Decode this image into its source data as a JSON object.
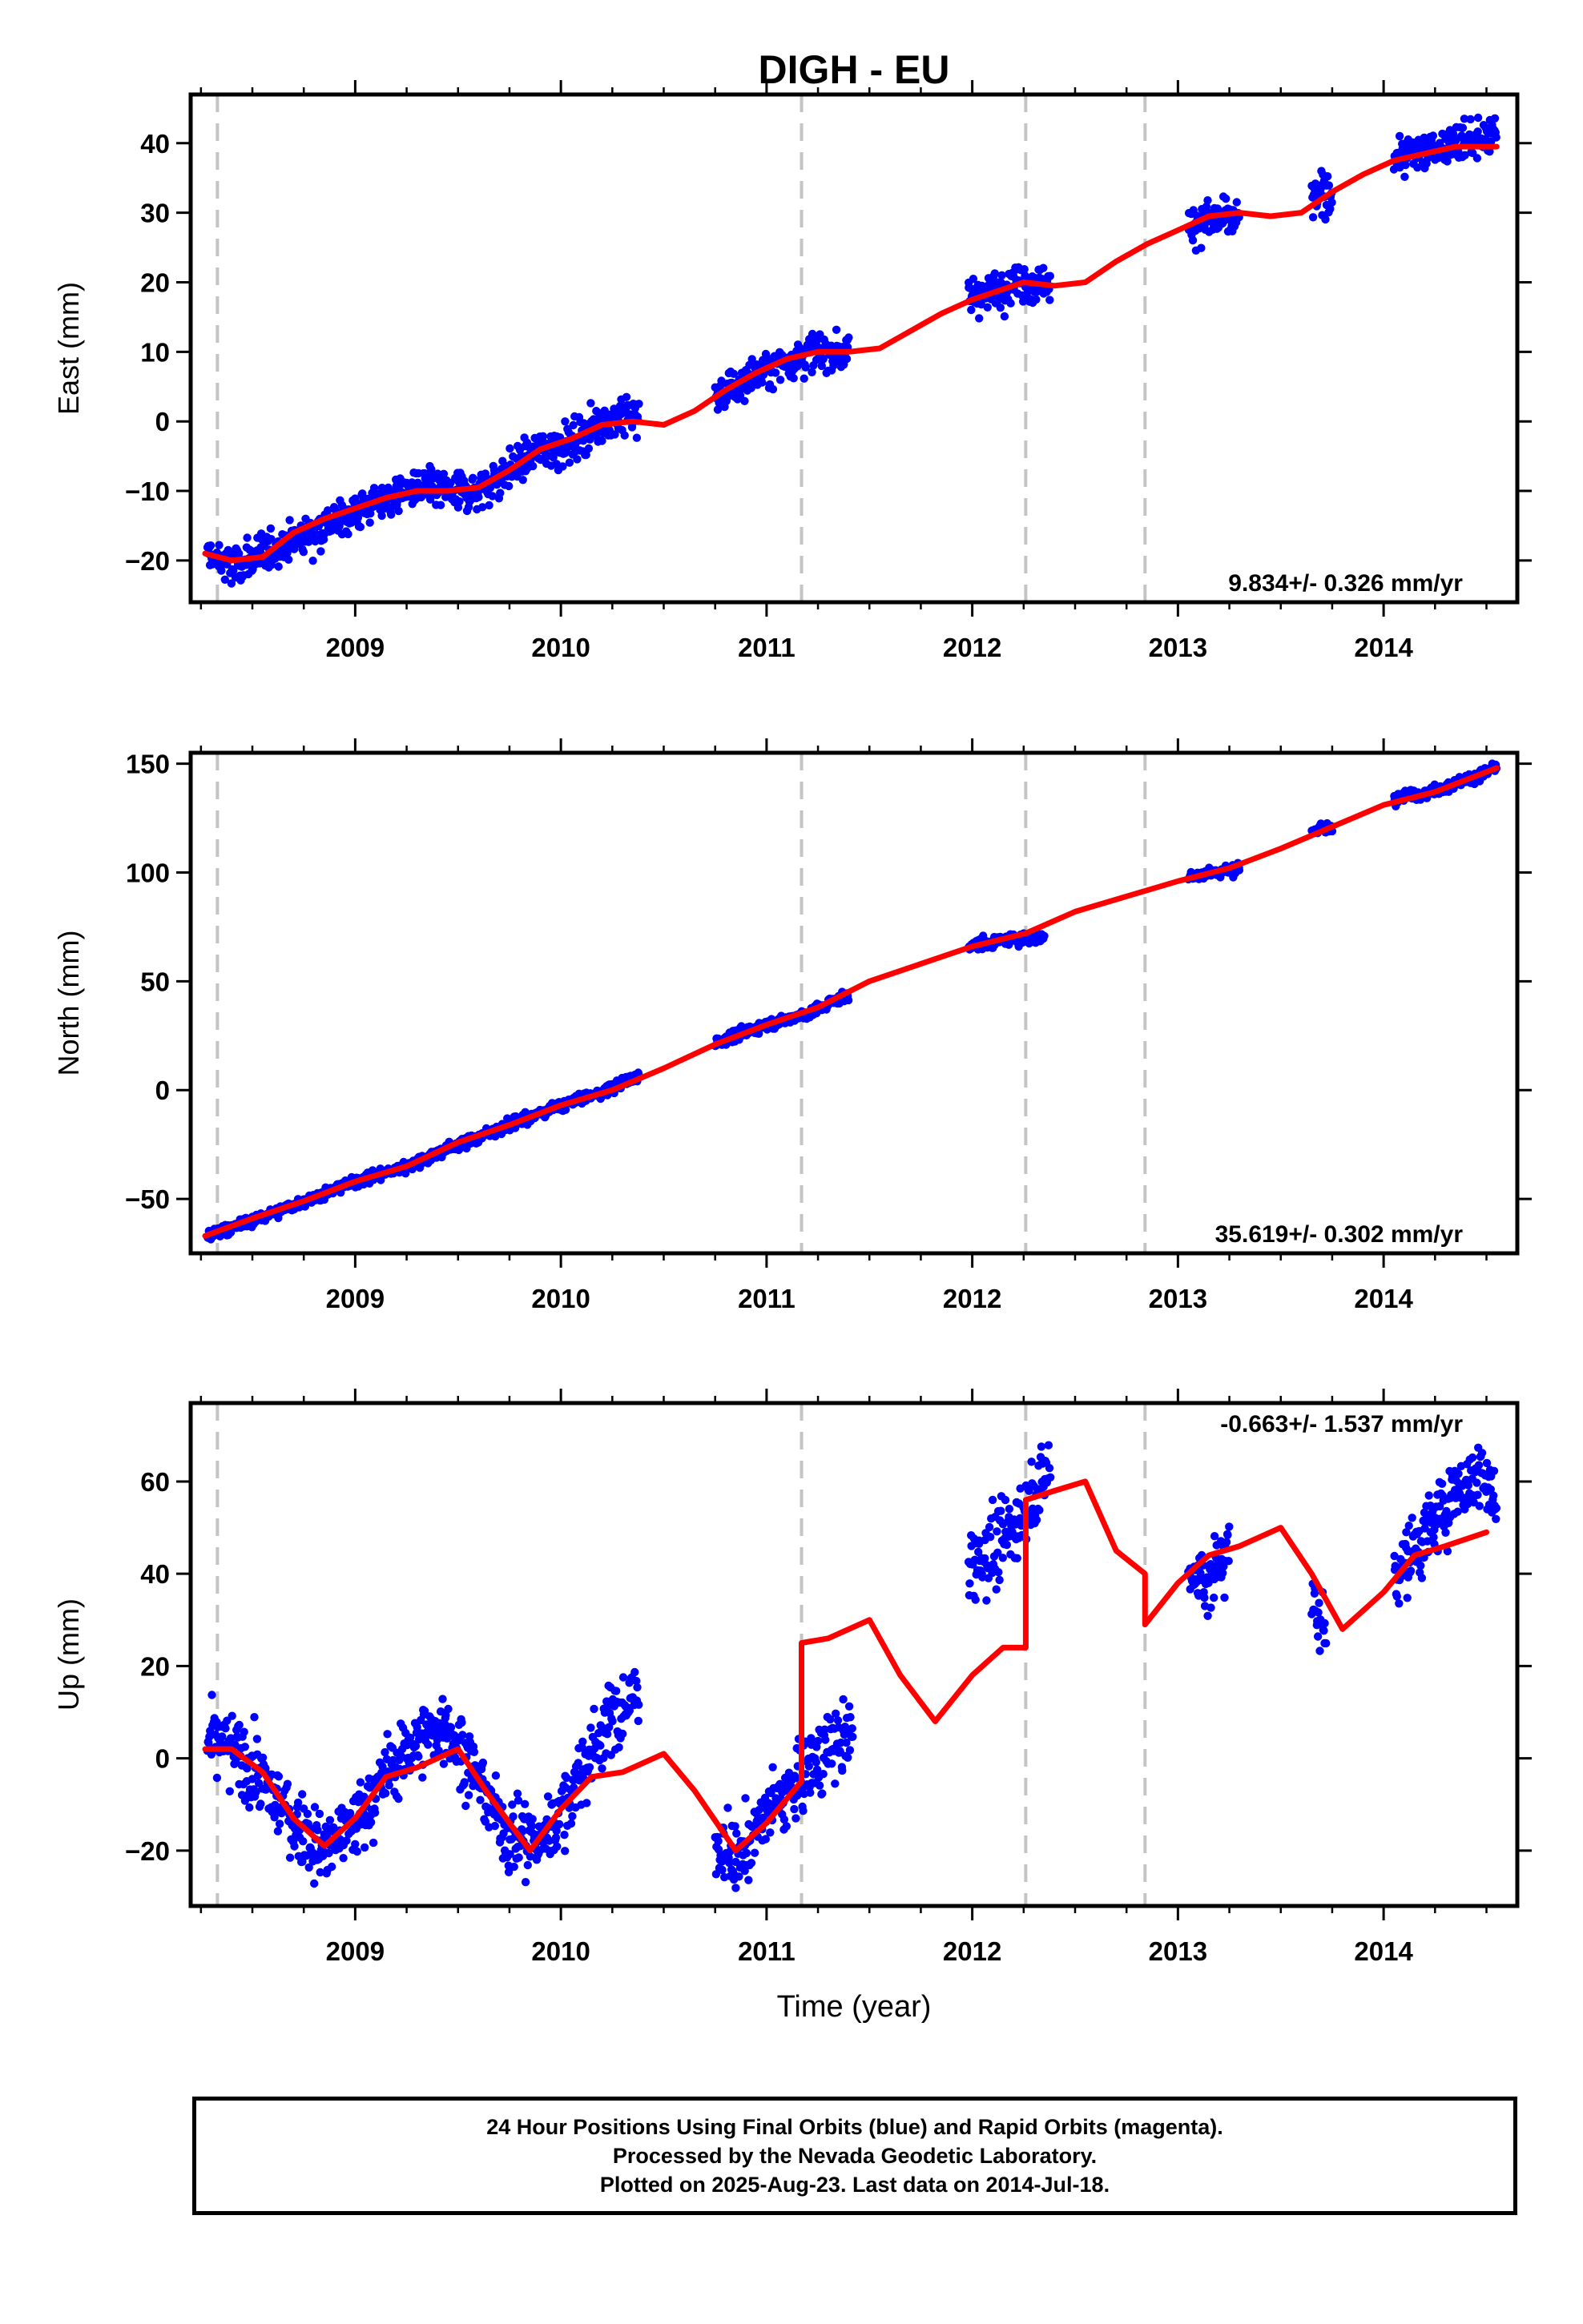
{
  "chart_data": [
    {
      "type": "scatter",
      "title": "DIGH - EU",
      "ylabel": "East (mm)",
      "xlabel": "",
      "xlim": [
        2008.2,
        2014.65
      ],
      "ylim": [
        -26,
        47
      ],
      "yticks": [
        -20,
        -10,
        0,
        10,
        20,
        30,
        40
      ],
      "xticks": [
        2009,
        2010,
        2011,
        2012,
        2013,
        2014
      ],
      "tick_labels": [
        "2009",
        "2010",
        "2011",
        "2012",
        "2013",
        "2014"
      ],
      "rate_label": "9.834+/- 0.326 mm/yr",
      "breaks": [
        2008.33,
        2011.17,
        2012.26,
        2012.84
      ],
      "grid": false,
      "series": [
        {
          "color": "#0000ff",
          "kind": "points",
          "segments": [
            {
              "x": [
                2008.28,
                2008.4,
                2008.55,
                2008.7,
                2008.85,
                2009.0,
                2009.15,
                2009.3,
                2009.45,
                2009.6,
                2009.75,
                2009.9,
                2010.05,
                2010.2,
                2010.38
              ],
              "y": [
                -19,
                -21,
                -19,
                -17,
                -15,
                -13,
                -11,
                -9.5,
                -10,
                -10,
                -7,
                -4,
                -3,
                0,
                1
              ]
            },
            {
              "x": [
                2010.75,
                2010.9,
                2011.05,
                2011.2,
                2011.4
              ],
              "y": [
                3,
                6,
                8,
                10,
                10
              ]
            },
            {
              "x": [
                2011.98,
                2012.1,
                2012.2,
                2012.38
              ],
              "y": [
                18,
                19,
                20,
                20
              ]
            },
            {
              "x": [
                2013.05,
                2013.15,
                2013.3
              ],
              "y": [
                28,
                29,
                29
              ]
            },
            {
              "x": [
                2013.65,
                2013.75
              ],
              "y": [
                32,
                33
              ]
            },
            {
              "x": [
                2014.05,
                2014.2,
                2014.35,
                2014.55
              ],
              "y": [
                38,
                39,
                40,
                41
              ]
            }
          ],
          "spread": 2.2
        },
        {
          "color": "#ff0000",
          "kind": "line",
          "x": [
            2008.27,
            2008.4,
            2008.55,
            2008.7,
            2008.85,
            2009.0,
            2009.15,
            2009.3,
            2009.45,
            2009.6,
            2009.75,
            2009.9,
            2010.05,
            2010.2,
            2010.35,
            2010.5,
            2010.65,
            2010.8,
            2010.95,
            2011.1,
            2011.25,
            2011.4,
            2011.55,
            2011.7,
            2011.85,
            2012.0,
            2012.15,
            2012.25,
            2012.4,
            2012.55,
            2012.7,
            2012.85,
            2013.0,
            2013.15,
            2013.3,
            2013.45,
            2013.6,
            2013.75,
            2013.9,
            2014.05,
            2014.2,
            2014.35,
            2014.5,
            2014.55
          ],
          "y": [
            -19,
            -20,
            -19.5,
            -16,
            -14,
            -12.5,
            -11,
            -10,
            -10,
            -9.5,
            -7,
            -4,
            -2.5,
            -0.5,
            0,
            -0.5,
            1.5,
            4.5,
            7,
            9,
            10,
            10,
            10.5,
            13,
            15.5,
            17.5,
            19,
            20,
            19.5,
            20,
            23,
            25.5,
            27.5,
            29.5,
            30,
            29.5,
            30,
            33,
            35.5,
            37.5,
            38.5,
            39.5,
            39.5,
            39.5
          ]
        }
      ]
    },
    {
      "type": "scatter",
      "title": "",
      "ylabel": "North (mm)",
      "xlabel": "",
      "xlim": [
        2008.2,
        2014.65
      ],
      "ylim": [
        -75,
        155
      ],
      "yticks": [
        -50,
        0,
        50,
        100,
        150
      ],
      "xticks": [
        2009,
        2010,
        2011,
        2012,
        2013,
        2014
      ],
      "tick_labels": [
        "2009",
        "2010",
        "2011",
        "2012",
        "2013",
        "2014"
      ],
      "rate_label": "35.619+/- 0.302 mm/yr",
      "breaks": [
        2008.33,
        2011.17,
        2012.26,
        2012.84
      ],
      "grid": false,
      "series": [
        {
          "color": "#0000ff",
          "kind": "points",
          "segments": [
            {
              "x": [
                2008.28,
                2008.5,
                2008.75,
                2009.0,
                2009.25,
                2009.5,
                2009.75,
                2010.0,
                2010.2,
                2010.38
              ],
              "y": [
                -67,
                -60,
                -51,
                -42,
                -35,
                -25,
                -16,
                -7,
                -1,
                7
              ]
            },
            {
              "x": [
                2010.75,
                2011.0,
                2011.2,
                2011.4
              ],
              "y": [
                22,
                30,
                35,
                44
              ]
            },
            {
              "x": [
                2011.98,
                2012.15,
                2012.35
              ],
              "y": [
                66,
                69,
                70
              ]
            },
            {
              "x": [
                2013.05,
                2013.3
              ],
              "y": [
                98,
                102
              ]
            },
            {
              "x": [
                2013.65,
                2013.75
              ],
              "y": [
                119,
                121
              ]
            },
            {
              "x": [
                2014.05,
                2014.3,
                2014.55
              ],
              "y": [
                134,
                139,
                148
              ]
            }
          ],
          "spread": 2.0
        },
        {
          "color": "#ff0000",
          "kind": "line",
          "x": [
            2008.27,
            2008.5,
            2008.75,
            2009.0,
            2009.25,
            2009.5,
            2009.75,
            2010.0,
            2010.25,
            2010.5,
            2010.75,
            2011.0,
            2011.25,
            2011.5,
            2011.75,
            2012.0,
            2012.26,
            2012.5,
            2012.75,
            2013.0,
            2013.25,
            2013.5,
            2013.75,
            2014.0,
            2014.25,
            2014.55
          ],
          "y": [
            -67,
            -59,
            -51,
            -42,
            -35,
            -24,
            -16,
            -7,
            0,
            10,
            21,
            30,
            38,
            50,
            58,
            66,
            72,
            82,
            89,
            96,
            102,
            111,
            121,
            131,
            137,
            148
          ]
        }
      ]
    },
    {
      "type": "scatter",
      "title": "",
      "ylabel": "Up (mm)",
      "xlabel": "Time (year)",
      "xlim": [
        2008.2,
        2014.65
      ],
      "ylim": [
        -32,
        77
      ],
      "yticks": [
        -20,
        0,
        20,
        40,
        60
      ],
      "xticks": [
        2009,
        2010,
        2011,
        2012,
        2013,
        2014
      ],
      "tick_labels": [
        "2009",
        "2010",
        "2011",
        "2012",
        "2013",
        "2014"
      ],
      "rate_label": "-0.663+/- 1.537 mm/yr",
      "breaks": [
        2008.33,
        2011.17,
        2012.26,
        2012.84
      ],
      "grid": false,
      "series": [
        {
          "color": "#0000ff",
          "kind": "points",
          "segments": [
            {
              "x": [
                2008.28,
                2008.4,
                2008.55,
                2008.7,
                2008.85,
                2009.0,
                2009.15,
                2009.3,
                2009.45,
                2009.6,
                2009.75,
                2009.9,
                2010.05,
                2010.2,
                2010.38
              ],
              "y": [
                3,
                2,
                -5,
                -14,
                -20,
                -14,
                -4,
                4,
                7,
                -5,
                -17,
                -18,
                -8,
                6,
                14
              ]
            },
            {
              "x": [
                2010.75,
                2010.85,
                2011.0,
                2011.15,
                2011.3,
                2011.42
              ],
              "y": [
                -18,
                -22,
                -12,
                -5,
                2,
                5
              ]
            },
            {
              "x": [
                2011.98,
                2012.1,
                2012.2,
                2012.3,
                2012.38
              ],
              "y": [
                42,
                45,
                50,
                58,
                63
              ]
            },
            {
              "x": [
                2013.05,
                2013.15,
                2013.25
              ],
              "y": [
                40,
                38,
                46
              ]
            },
            {
              "x": [
                2013.65,
                2013.72
              ],
              "y": [
                34,
                28
              ]
            },
            {
              "x": [
                2014.05,
                2014.2,
                2014.35,
                2014.5,
                2014.55
              ],
              "y": [
                40,
                48,
                58,
                62,
                55
              ]
            }
          ],
          "spread": 6.0
        },
        {
          "color": "#ff0000",
          "kind": "line",
          "x": [
            2008.27,
            2008.4,
            2008.55,
            2008.7,
            2008.85,
            2009.0,
            2009.15,
            2009.3,
            2009.5,
            2009.65,
            2009.85,
            2010.0,
            2010.15,
            2010.3,
            2010.5,
            2010.65,
            2010.85,
            2011.0,
            2011.17,
            2011.17,
            2011.3,
            2011.5,
            2011.65,
            2011.82,
            2012.0,
            2012.15,
            2012.26,
            2012.26,
            2012.4,
            2012.55,
            2012.7,
            2012.84,
            2012.84,
            2013.0,
            2013.15,
            2013.3,
            2013.5,
            2013.65,
            2013.8,
            2014.0,
            2014.15,
            2014.3,
            2014.5
          ],
          "y": [
            2,
            2,
            -3,
            -13,
            -19,
            -13,
            -4,
            -2,
            2,
            -8,
            -20,
            -11,
            -4,
            -3,
            1,
            -7,
            -20,
            -14,
            -5,
            25,
            26,
            30,
            18,
            8,
            18,
            24,
            24,
            56,
            58,
            60,
            45,
            40,
            29,
            38,
            44,
            46,
            50,
            40,
            28,
            36,
            44,
            46,
            49
          ]
        }
      ]
    }
  ],
  "caption": {
    "line1": "24 Hour Positions Using Final Orbits (blue) and Rapid Orbits (magenta).",
    "line2": "Processed by the Nevada Geodetic Laboratory.",
    "line3": "Plotted on 2025-Aug-23. Last data on 2014-Jul-18."
  }
}
